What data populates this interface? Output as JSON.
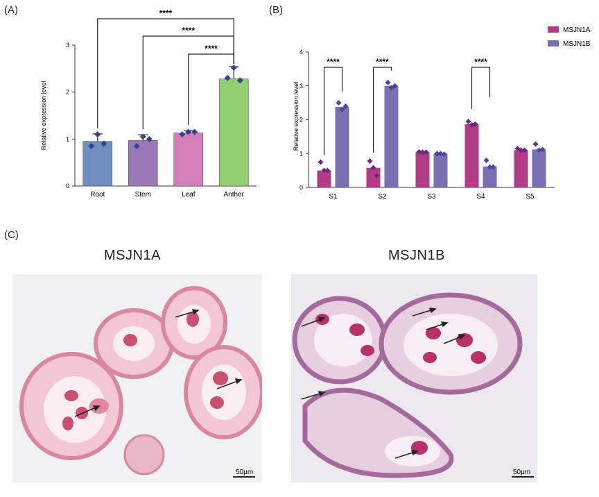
{
  "panels": {
    "a_label": "(A)",
    "b_label": "(B)",
    "c_label": "(C)"
  },
  "chart_data": [
    {
      "type": "bar",
      "categories": [
        "Root",
        "Stem",
        "Leaf",
        "Anther"
      ],
      "values": [
        0.95,
        0.97,
        1.13,
        2.28
      ],
      "errors": [
        0.16,
        0.12,
        0.05,
        0.26
      ],
      "points": [
        [
          1.1,
          0.85,
          0.9
        ],
        [
          1.05,
          0.85,
          1.0
        ],
        [
          1.15,
          1.1,
          1.15
        ],
        [
          2.52,
          2.3,
          2.25
        ]
      ],
      "bar_colors": [
        "#6f8fc0",
        "#9b78b8",
        "#d27fba",
        "#8fcf72"
      ],
      "ylabel": "Relative expression level",
      "xlabel": "",
      "yticks": [
        "0",
        "1",
        "2",
        "3"
      ],
      "ylim": [
        0,
        3
      ],
      "significance": [
        {
          "from": "Root",
          "to": "Anther",
          "label": "****"
        },
        {
          "from": "Stem",
          "to": "Anther",
          "label": "****"
        },
        {
          "from": "Leaf",
          "to": "Anther",
          "label": "****"
        }
      ],
      "grid": false
    },
    {
      "type": "bar",
      "categories": [
        "S1",
        "S2",
        "S3",
        "S4",
        "S5"
      ],
      "series": [
        {
          "name": "MSJN1A",
          "color": "#b23c87",
          "values": [
            0.5,
            0.58,
            1.04,
            1.87,
            1.1
          ],
          "points": [
            [
              0.75,
              0.5,
              0.5
            ],
            [
              0.78,
              0.58,
              0.35
            ],
            [
              1.05,
              1.04,
              1.04
            ],
            [
              1.95,
              1.85,
              1.87
            ],
            [
              1.15,
              1.1,
              1.1
            ]
          ]
        },
        {
          "name": "MSJN1B",
          "color": "#7a6fb0",
          "values": [
            2.38,
            3.0,
            1.0,
            0.62,
            1.12
          ],
          "points": [
            [
              2.5,
              2.3,
              2.4
            ],
            [
              3.1,
              2.95,
              3.0
            ],
            [
              1.0,
              1.0,
              0.98
            ],
            [
              0.8,
              0.6,
              0.6
            ],
            [
              1.28,
              1.1,
              1.12
            ]
          ]
        }
      ],
      "ylabel": "Relative expression level",
      "xlabel": "",
      "yticks": [
        "0",
        "1",
        "2",
        "3",
        "4"
      ],
      "ylim": [
        0,
        4
      ],
      "significance": [
        {
          "category": "S1",
          "label": "****"
        },
        {
          "category": "S2",
          "label": "****"
        },
        {
          "category": "S4",
          "label": "****"
        }
      ],
      "legend_position": "top-right",
      "grid": false
    }
  ],
  "micrographs": {
    "left_title": "MSJN1A",
    "right_title": "MSJN1B",
    "left_scale": "50μm",
    "right_scale": "50μm"
  }
}
